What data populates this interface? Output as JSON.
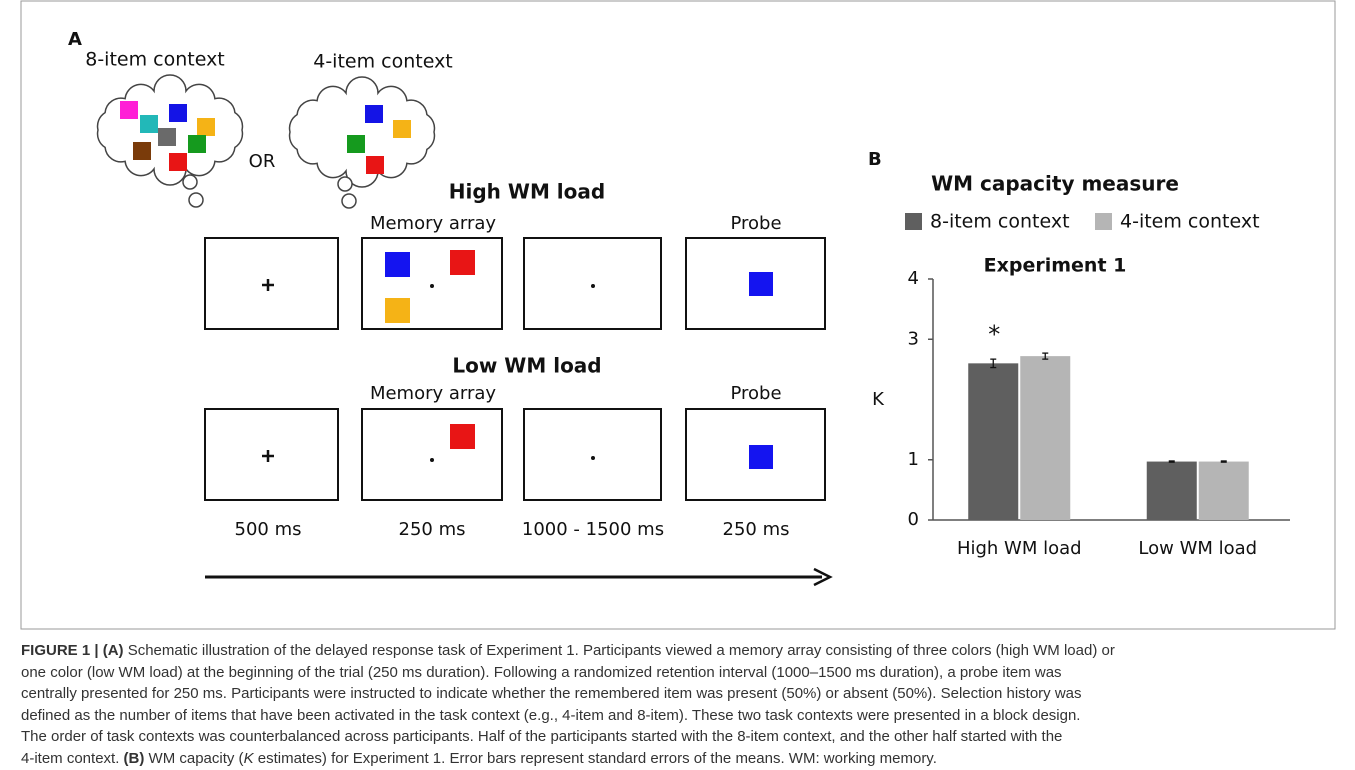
{
  "panel_a": {
    "label": "A",
    "contexts": [
      "8-item context",
      "4-item context"
    ],
    "or": "OR",
    "rows": [
      {
        "title": "High WM load",
        "array_label": "Memory array",
        "probe_label": "Probe"
      },
      {
        "title": "Low WM load",
        "array_label": "Memory array",
        "probe_label": "Probe"
      }
    ],
    "timings": [
      "500 ms",
      "250 ms",
      "1000 - 1500 ms",
      "250 ms"
    ]
  },
  "chart_data": {
    "type": "bar",
    "panel_label": "B",
    "title": "WM capacity measure",
    "subtitle": "Experiment 1",
    "y_label": "K",
    "annotation": "*",
    "categories": [
      "High WM load",
      "Low WM load"
    ],
    "series": [
      {
        "name": "8-item context",
        "color": "#5f5f5f",
        "values": [
          2.6,
          0.97
        ],
        "errors": [
          0.07,
          0.01
        ]
      },
      {
        "name": "4-item context",
        "color": "#b5b5b5",
        "values": [
          2.72,
          0.97
        ],
        "errors": [
          0.05,
          0.01
        ]
      }
    ],
    "ylim": [
      0,
      4
    ],
    "yticks": [
      0,
      1,
      3,
      4
    ]
  },
  "caption": [
    [
      {
        "text": "FIGURE 1 | (A)",
        "style": "bold"
      },
      {
        "text": " Schematic illustration of the delayed response task of Experiment 1. Participants viewed a memory array consisting of three colors (high WM load) or",
        "style": "normal"
      }
    ],
    [
      {
        "text": "one color (low WM load) at the beginning of the trial (250 ms duration). Following a randomized retention interval (1000–1500 ms duration), a probe item was",
        "style": "normal"
      }
    ],
    [
      {
        "text": "centrally presented for 250 ms. Participants were instructed to indicate whether the remembered item was present (50%) or absent (50%). Selection history was",
        "style": "normal"
      }
    ],
    [
      {
        "text": "defined as the number of items that have been activated in the task context (e.g., 4-item and 8-item). These two task contexts were presented in a block design.",
        "style": "normal"
      }
    ],
    [
      {
        "text": "The order of task contexts was counterbalanced across participants. Half of the participants started with the 8-item context, and the other half started with the",
        "style": "normal"
      }
    ],
    [
      {
        "text": "4-item context. ",
        "style": "normal"
      },
      {
        "text": "(B)",
        "style": "bold"
      },
      {
        "text": " WM capacity (",
        "style": "normal"
      },
      {
        "text": "K",
        "style": "italic"
      },
      {
        "text": " estimates) for Experiment 1. Error bars represent standard errors of the means. WM: working memory.",
        "style": "normal"
      }
    ]
  ]
}
